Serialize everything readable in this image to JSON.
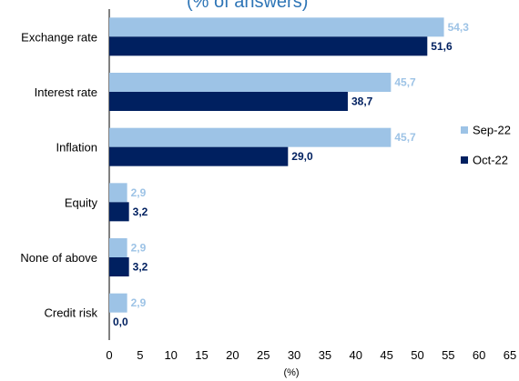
{
  "chart_data": {
    "type": "bar",
    "orientation": "horizontal",
    "title": "(% of answers)",
    "categories": [
      "Exchange rate",
      "Interest rate",
      "Inflation",
      "Equity",
      "None of above",
      "Credit risk"
    ],
    "series": [
      {
        "name": "Sep-22",
        "color": "#9dc3e6",
        "values": [
          54.3,
          45.7,
          45.7,
          2.9,
          2.9,
          2.9
        ],
        "labels": [
          "54,3",
          "45,7",
          "45,7",
          "2,9",
          "2,9",
          "2,9"
        ]
      },
      {
        "name": "Oct-22",
        "color": "#002060",
        "values": [
          51.6,
          38.7,
          29.0,
          3.2,
          3.2,
          0.0
        ],
        "labels": [
          "51,6",
          "38,7",
          "29,0",
          "3,2",
          "3,2",
          "0,0"
        ]
      }
    ],
    "xlabel": "(%)",
    "ylabel": "",
    "xlim": [
      0,
      65
    ],
    "xticks": [
      0,
      5,
      10,
      15,
      20,
      25,
      30,
      35,
      40,
      45,
      50,
      55,
      60,
      65
    ],
    "grid": false,
    "legend_position": "right"
  }
}
